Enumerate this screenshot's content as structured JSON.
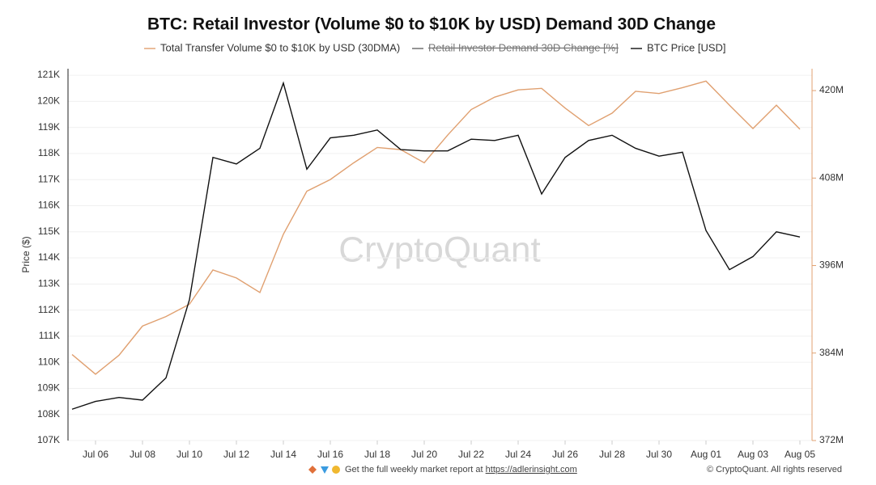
{
  "chart_data": {
    "type": "line",
    "title": "BTC: Retail Investor (Volume $0 to $10K by USD) Demand 30D Change",
    "ylabel": "Price ($)",
    "watermark": "CryptoQuant",
    "footer_note": "Get the full weekly market report at",
    "footer_link": "https://adlerinsight.com",
    "copyright": "© CryptoQuant. All rights reserved",
    "categories": [
      null,
      "Jul 06",
      null,
      "Jul 08",
      null,
      "Jul 10",
      null,
      "Jul 12",
      null,
      "Jul 14",
      null,
      "Jul 16",
      null,
      "Jul 18",
      null,
      "Jul 20",
      null,
      "Jul 22",
      null,
      "Jul 24",
      null,
      "Jul 26",
      null,
      "Jul 28",
      null,
      "Jul 30",
      null,
      "Aug 01",
      null,
      "Aug 03",
      null,
      "Aug 05"
    ],
    "series": [
      {
        "name": "Total Transfer Volume $0 to $10K by USD (30DMA)",
        "color": "#e0a070",
        "axis": "y2",
        "values": [
          383800000,
          381100000,
          383700000,
          387700000,
          389000000,
          390700000,
          395400000,
          394300000,
          392300000,
          400300000,
          406200000,
          407800000,
          410100000,
          412200000,
          411900000,
          410100000,
          413900000,
          417400000,
          419100000,
          420100000,
          420300000,
          417600000,
          415200000,
          416900000,
          419900000,
          419600000,
          420400000,
          421300000,
          418000000,
          414800000,
          418000000,
          414700000
        ]
      },
      {
        "name": "Retail Investor Demand 30D Change [%]",
        "color": "#666666",
        "hidden": true
      },
      {
        "name": "BTC Price [USD]",
        "color": "#111111",
        "values": [
          108200,
          108500,
          108650,
          108550,
          109400,
          112400,
          117850,
          117600,
          118200,
          120700,
          117400,
          118600,
          118700,
          118900,
          118150,
          118100,
          118100,
          118550,
          118500,
          118700,
          116450,
          117850,
          118500,
          118700,
          118200,
          117900,
          118050,
          115050,
          113550,
          114050,
          115000,
          114800
        ]
      }
    ],
    "ylim": [
      107000,
      121250
    ],
    "yticks": [
      {
        "value": 107000,
        "label": "107K"
      },
      {
        "value": 108000,
        "label": "108K"
      },
      {
        "value": 109000,
        "label": "109K"
      },
      {
        "value": 110000,
        "label": "110K"
      },
      {
        "value": 111000,
        "label": "111K"
      },
      {
        "value": 112000,
        "label": "112K"
      },
      {
        "value": 113000,
        "label": "113K"
      },
      {
        "value": 114000,
        "label": "114K"
      },
      {
        "value": 115000,
        "label": "115K"
      },
      {
        "value": 116000,
        "label": "116K"
      },
      {
        "value": 117000,
        "label": "117K"
      },
      {
        "value": 118000,
        "label": "118K"
      },
      {
        "value": 119000,
        "label": "119K"
      },
      {
        "value": 120000,
        "label": "120K"
      },
      {
        "value": 121000,
        "label": "121K"
      }
    ],
    "y2lim": [
      372000000,
      423000000
    ],
    "y2ticks": [
      {
        "value": 372000000,
        "label": "372M"
      },
      {
        "value": 384000000,
        "label": "384M"
      },
      {
        "value": 396000000,
        "label": "396M"
      },
      {
        "value": 408000000,
        "label": "408M"
      },
      {
        "value": 420000000,
        "label": "420M"
      }
    ],
    "grid": true,
    "legend": "top"
  }
}
